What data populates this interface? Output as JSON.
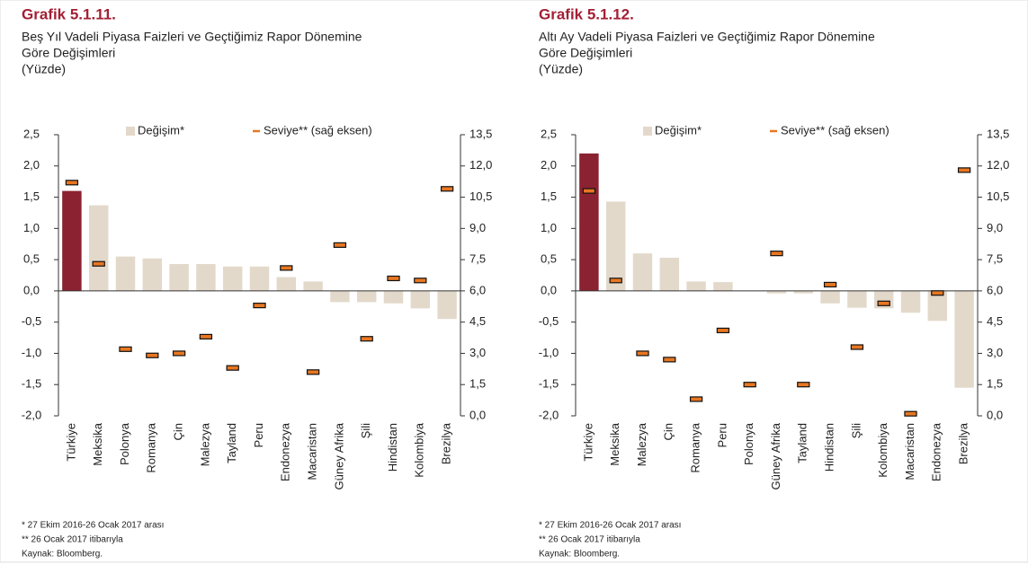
{
  "chart_data": [
    {
      "type": "bar",
      "title": "Grafik 5.1.11.",
      "subtitle": [
        "Beş Yıl Vadeli Piyasa Faizleri ve Geçtiğimiz Rapor Dönemine",
        "Göre Değişimleri"
      ],
      "unit": "(Yüzde)",
      "categories": [
        "Türkiye",
        "Meksika",
        "Polonya",
        "Romanya",
        "Çin",
        "Malezya",
        "Tayland",
        "Peru",
        "Endonezya",
        "Macaristan",
        "Güney Afrika",
        "Şili",
        "Hindistan",
        "Kolombiya",
        "Brezilya"
      ],
      "series": [
        {
          "name": "Değişim*",
          "style": "bar",
          "color": "#e3d9cb",
          "colors": [
            "#8b2231",
            "#e3d9cb",
            "#e3d9cb",
            "#e3d9cb",
            "#e3d9cb",
            "#e3d9cb",
            "#e3d9cb",
            "#e3d9cb",
            "#e3d9cb",
            "#e3d9cb",
            "#e3d9cb",
            "#e3d9cb",
            "#e3d9cb",
            "#e3d9cb",
            "#e3d9cb"
          ],
          "values": [
            1.6,
            1.37,
            0.55,
            0.52,
            0.43,
            0.43,
            0.39,
            0.39,
            0.22,
            0.15,
            -0.18,
            -0.18,
            -0.2,
            -0.28,
            -0.45
          ]
        },
        {
          "name": "Seviye** (sağ eksen)",
          "style": "dash",
          "color": "#e87722",
          "axis": "y2",
          "values": [
            11.2,
            7.3,
            3.2,
            2.9,
            3.0,
            3.8,
            2.3,
            5.3,
            7.1,
            2.1,
            8.2,
            3.7,
            6.6,
            6.5,
            10.9
          ]
        }
      ],
      "ylim": [
        -2,
        2.5
      ],
      "yticks": [
        {
          "value": -2,
          "label": "-2,0"
        },
        {
          "value": -1.5,
          "label": "-1,5"
        },
        {
          "value": -1,
          "label": "-1,0"
        },
        {
          "value": -0.5,
          "label": "-0,5"
        },
        {
          "value": 0,
          "label": "0,0"
        },
        {
          "value": 0.5,
          "label": "0,5"
        },
        {
          "value": 1,
          "label": "1,0"
        },
        {
          "value": 1.5,
          "label": "1,5"
        },
        {
          "value": 2,
          "label": "2,0"
        },
        {
          "value": 2.5,
          "label": "2,5"
        }
      ],
      "y2lim": [
        0,
        13.5
      ],
      "y2ticks": [
        {
          "value": 0,
          "label": "0,0"
        },
        {
          "value": 1.5,
          "label": "1,5"
        },
        {
          "value": 3,
          "label": "3,0"
        },
        {
          "value": 4.5,
          "label": "4,5"
        },
        {
          "value": 6,
          "label": "6,0"
        },
        {
          "value": 7.5,
          "label": "7,5"
        },
        {
          "value": 9,
          "label": "9,0"
        },
        {
          "value": 10.5,
          "label": "10,5"
        },
        {
          "value": 12,
          "label": "12,0"
        },
        {
          "value": 13.5,
          "label": "13,5"
        }
      ],
      "legend": "top",
      "footnotes": [
        "*  27 Ekim 2016-26 Ocak 2017 arası",
        "** 26 Ocak 2017 itibarıyla",
        "Kaynak: Bloomberg."
      ]
    },
    {
      "type": "bar",
      "title": "Grafik 5.1.12.",
      "subtitle": [
        "Altı Ay Vadeli Piyasa Faizleri ve Geçtiğimiz Rapor Dönemine",
        "Göre Değişimleri"
      ],
      "unit": "(Yüzde)",
      "categories": [
        "Türkiye",
        "Meksika",
        "Malezya",
        "Çin",
        "Romanya",
        "Peru",
        "Polonya",
        "Güney Afrika",
        "Tayland",
        "Hindistan",
        "Şili",
        "Kolombiya",
        "Macaristan",
        "Endonezya",
        "Brezilya"
      ],
      "series": [
        {
          "name": "Değişim*",
          "style": "bar",
          "color": "#e3d9cb",
          "colors": [
            "#8b2231",
            "#e3d9cb",
            "#e3d9cb",
            "#e3d9cb",
            "#e3d9cb",
            "#e3d9cb",
            "#e3d9cb",
            "#e3d9cb",
            "#e3d9cb",
            "#e3d9cb",
            "#e3d9cb",
            "#e3d9cb",
            "#e3d9cb",
            "#e3d9cb",
            "#e3d9cb"
          ],
          "values": [
            2.2,
            1.43,
            0.6,
            0.53,
            0.15,
            0.14,
            0,
            -0.04,
            -0.04,
            -0.2,
            -0.27,
            -0.28,
            -0.35,
            -0.48,
            -1.55
          ]
        },
        {
          "name": "Seviye** (sağ eksen)",
          "style": "dash",
          "color": "#e87722",
          "axis": "y2",
          "values": [
            10.8,
            6.5,
            3.0,
            2.7,
            0.8,
            4.1,
            1.5,
            7.8,
            1.5,
            6.3,
            3.3,
            5.4,
            0.1,
            5.9,
            11.8
          ]
        }
      ],
      "ylim": [
        -2,
        2.5
      ],
      "yticks": [
        {
          "value": -2,
          "label": "-2,0"
        },
        {
          "value": -1.5,
          "label": "-1,5"
        },
        {
          "value": -1,
          "label": "-1,0"
        },
        {
          "value": -0.5,
          "label": "-0,5"
        },
        {
          "value": 0,
          "label": "0,0"
        },
        {
          "value": 0.5,
          "label": "0,5"
        },
        {
          "value": 1,
          "label": "1,0"
        },
        {
          "value": 1.5,
          "label": "1,5"
        },
        {
          "value": 2,
          "label": "2,0"
        },
        {
          "value": 2.5,
          "label": "2,5"
        }
      ],
      "y2lim": [
        0,
        13.5
      ],
      "y2ticks": [
        {
          "value": 0,
          "label": "0,0"
        },
        {
          "value": 1.5,
          "label": "1,5"
        },
        {
          "value": 3,
          "label": "3,0"
        },
        {
          "value": 4.5,
          "label": "4,5"
        },
        {
          "value": 6,
          "label": "6,0"
        },
        {
          "value": 7.5,
          "label": "7,5"
        },
        {
          "value": 9,
          "label": "9,0"
        },
        {
          "value": 10.5,
          "label": "10,5"
        },
        {
          "value": 12,
          "label": "12,0"
        },
        {
          "value": 13.5,
          "label": "13,5"
        }
      ],
      "legend": "top",
      "footnotes": [
        "*  27 Ekim 2016-26 Ocak 2017 arası",
        "** 26 Ocak 2017 itibarıyla",
        "Kaynak: Bloomberg."
      ]
    }
  ]
}
